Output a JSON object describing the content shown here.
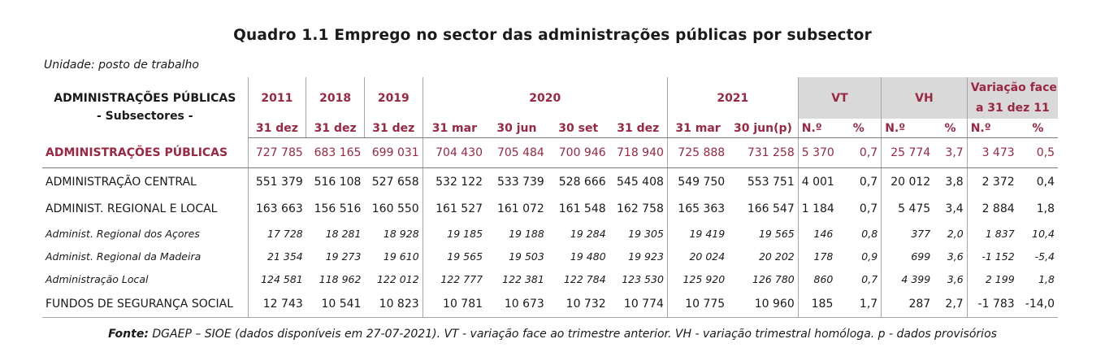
{
  "title": "Quadro 1.1 Emprego no sector das administrações públicas por subsector",
  "unit": "Unidade: posto de trabalho",
  "header": {
    "adm_label": "ADMINISTRAÇÕES PÚBLICAS",
    "adm_sub": "- Subsectores -",
    "years": [
      "2011",
      "2018",
      "2019",
      "2020",
      "2021"
    ],
    "vt": "VT",
    "vh": "VH",
    "var_line1": "Variação face",
    "var_line2": "a 31 dez 11",
    "subcols": [
      "31 dez",
      "31 dez",
      "31 dez",
      "31 mar",
      "30 jun",
      "30 set",
      "31 dez",
      "31 mar",
      "30 jun(p)",
      "N.º",
      "%",
      "N.º",
      "%",
      "N.º",
      "%"
    ]
  },
  "rows": [
    {
      "label": "ADMINISTRAÇÕES PÚBLICAS",
      "values": [
        "727 785",
        "683 165",
        "699 031",
        "704 430",
        "705 484",
        "700 946",
        "718 940",
        "725 888",
        "731 258",
        "5 370",
        "0,7",
        "25 774",
        "3,7",
        "3 473",
        "0,5"
      ]
    },
    {
      "label": "ADMINISTRAÇÃO CENTRAL",
      "values": [
        "551 379",
        "516 108",
        "527 658",
        "532 122",
        "533 739",
        "528 666",
        "545 408",
        "549 750",
        "553 751",
        "4 001",
        "0,7",
        "20 012",
        "3,8",
        "2 372",
        "0,4"
      ]
    },
    {
      "label": "ADMINIST. REGIONAL E LOCAL",
      "values": [
        "163 663",
        "156 516",
        "160 550",
        "161 527",
        "161 072",
        "161 548",
        "162 758",
        "165 363",
        "166 547",
        "1 184",
        "0,7",
        "5 475",
        "3,4",
        "2 884",
        "1,8"
      ]
    },
    {
      "label": "Administ. Regional dos Açores",
      "values": [
        "17 728",
        "18 281",
        "18 928",
        "19 185",
        "19 188",
        "19 284",
        "19 305",
        "19 419",
        "19 565",
        "146",
        "0,8",
        "377",
        "2,0",
        "1 837",
        "10,4"
      ]
    },
    {
      "label": "Administ. Regional da Madeira",
      "values": [
        "21 354",
        "19 273",
        "19 610",
        "19 565",
        "19 503",
        "19 480",
        "19 923",
        "20 024",
        "20 202",
        "178",
        "0,9",
        "699",
        "3,6",
        "-1 152",
        "-5,4"
      ]
    },
    {
      "label": "Administração Local",
      "values": [
        "124 581",
        "118 962",
        "122 012",
        "122 777",
        "122 381",
        "122 784",
        "123 530",
        "125 920",
        "126 780",
        "860",
        "0,7",
        "4 399",
        "3,6",
        "2 199",
        "1,8"
      ]
    },
    {
      "label": "FUNDOS DE SEGURANÇA SOCIAL",
      "values": [
        "12 743",
        "10 541",
        "10 823",
        "10 781",
        "10 673",
        "10 732",
        "10 774",
        "10 775",
        "10 960",
        "185",
        "1,7",
        "287",
        "2,7",
        "-1 783",
        "-14,0"
      ]
    }
  ],
  "source": {
    "label": "Fonte:",
    "text": " DGAEP – SIOE (dados disponíveis em 27-07-2021). VT - variação face ao trimestre anterior. VH - variação trimestral homóloga.   p - dados provisórios"
  },
  "colors": {
    "accent": "#9b2742",
    "header_fill": "#d9d9d9"
  }
}
